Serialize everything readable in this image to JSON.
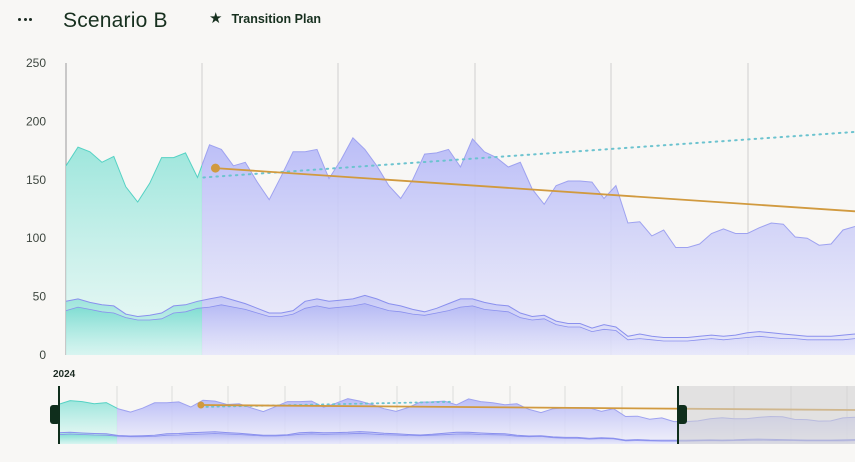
{
  "header": {
    "menu_icon": "more-horizontal-icon",
    "title": "Scenario B",
    "plan_icon": "star-icon",
    "plan_label": "Transition Plan"
  },
  "colors": {
    "teal": "#7fe0d4",
    "periwinkle": "#b9bcf7",
    "plan_line": "#d19a3f",
    "dotted_line": "#6cc3cf",
    "handle": "#0f2e1c"
  },
  "timeline": {
    "year_label": "2024"
  },
  "chart_data": {
    "type": "area",
    "ylim": [
      0,
      250
    ],
    "yticks": [
      0,
      50,
      100,
      150,
      200,
      250
    ],
    "historical_points": 12,
    "series": [
      {
        "name": "",
        "values": [
          162,
          178,
          174,
          165,
          170,
          144,
          131,
          147,
          169,
          169,
          173,
          152,
          180,
          176,
          162,
          165,
          148,
          133,
          153,
          174,
          174,
          176,
          151,
          167,
          186,
          176,
          162,
          145,
          134,
          150,
          172,
          173,
          176,
          161,
          185,
          174,
          169,
          161,
          165,
          142,
          129,
          145,
          149,
          149,
          148,
          134,
          145,
          113,
          114,
          102,
          107,
          92,
          92,
          95,
          104,
          108,
          104,
          104,
          109,
          113,
          112,
          101,
          100,
          94,
          95,
          107,
          110
        ]
      },
      {
        "name": "",
        "values": [
          46,
          48,
          45,
          43,
          42,
          35,
          33,
          34,
          36,
          42,
          43,
          46,
          48,
          50,
          47,
          44,
          40,
          36,
          36,
          38,
          46,
          48,
          46,
          47,
          48,
          51,
          48,
          44,
          42,
          39,
          37,
          40,
          44,
          48,
          48,
          45,
          43,
          42,
          36,
          33,
          34,
          29,
          27,
          27,
          23,
          26,
          24,
          16,
          18,
          16,
          15,
          15,
          15,
          16,
          17,
          16,
          17,
          19,
          20,
          19,
          18,
          17,
          16,
          16,
          16,
          17,
          18
        ]
      },
      {
        "name": "",
        "values": [
          38,
          41,
          39,
          37,
          36,
          32,
          30,
          30,
          31,
          36,
          37,
          40,
          41,
          43,
          41,
          39,
          36,
          33,
          33,
          35,
          40,
          42,
          40,
          41,
          42,
          44,
          41,
          38,
          37,
          35,
          34,
          36,
          38,
          41,
          42,
          39,
          38,
          37,
          32,
          30,
          31,
          26,
          24,
          24,
          20,
          22,
          21,
          13,
          14,
          13,
          12,
          12,
          12,
          13,
          14,
          13,
          14,
          15,
          16,
          15,
          14,
          14,
          13,
          13,
          13,
          13,
          14
        ]
      },
      {
        "name": "",
        "x": [
          12,
          66
        ],
        "values": [
          160,
          123
        ]
      },
      {
        "name": "",
        "x": [
          12,
          66
        ],
        "values": [
          152,
          191
        ]
      }
    ]
  }
}
